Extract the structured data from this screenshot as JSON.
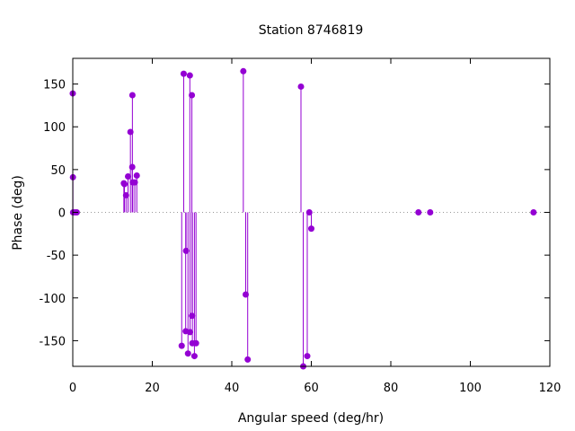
{
  "chart_data": {
    "type": "scatter",
    "style": "impulses-with-points",
    "title": "Station 8746819",
    "xlabel": "Angular speed (deg/hr)",
    "ylabel": "Phase (deg)",
    "xlim": [
      0,
      120
    ],
    "ylim": [
      -180,
      180
    ],
    "xticks": [
      "0",
      "20",
      "40",
      "60",
      "80",
      "100",
      "120"
    ],
    "yticks": [
      "-150",
      "-100",
      "-50",
      "0",
      "50",
      "100",
      "150"
    ],
    "xtick_values": [
      0,
      20,
      40,
      60,
      80,
      100,
      120
    ],
    "ytick_values": [
      -150,
      -100,
      -50,
      0,
      50,
      100,
      150
    ],
    "color": "#9400d3",
    "zero_line": true,
    "grid": false,
    "legend": "none",
    "points": [
      {
        "x": 0.0,
        "y": 139
      },
      {
        "x": 0.04,
        "y": 41
      },
      {
        "x": 0.08,
        "y": 0
      },
      {
        "x": 0.5,
        "y": 0
      },
      {
        "x": 1.0,
        "y": 0
      },
      {
        "x": 12.85,
        "y": 34
      },
      {
        "x": 13.0,
        "y": 33
      },
      {
        "x": 13.4,
        "y": 20
      },
      {
        "x": 13.9,
        "y": 42
      },
      {
        "x": 14.5,
        "y": 94
      },
      {
        "x": 14.96,
        "y": 53
      },
      {
        "x": 15.0,
        "y": 137
      },
      {
        "x": 15.1,
        "y": 35
      },
      {
        "x": 15.6,
        "y": 35
      },
      {
        "x": 16.1,
        "y": 43
      },
      {
        "x": 27.4,
        "y": -156
      },
      {
        "x": 27.9,
        "y": 162
      },
      {
        "x": 28.4,
        "y": -139
      },
      {
        "x": 28.5,
        "y": -45
      },
      {
        "x": 28.98,
        "y": -165
      },
      {
        "x": 29.45,
        "y": 160
      },
      {
        "x": 29.5,
        "y": -140
      },
      {
        "x": 29.96,
        "y": 137
      },
      {
        "x": 30.0,
        "y": -121
      },
      {
        "x": 30.08,
        "y": -153
      },
      {
        "x": 30.6,
        "y": -168
      },
      {
        "x": 31.0,
        "y": -153
      },
      {
        "x": 42.9,
        "y": 165
      },
      {
        "x": 43.5,
        "y": -96
      },
      {
        "x": 44.0,
        "y": -172
      },
      {
        "x": 57.4,
        "y": 147
      },
      {
        "x": 57.97,
        "y": -180
      },
      {
        "x": 58.98,
        "y": -168
      },
      {
        "x": 59.5,
        "y": 0
      },
      {
        "x": 60.0,
        "y": -19
      },
      {
        "x": 86.95,
        "y": 0
      },
      {
        "x": 89.9,
        "y": 0
      },
      {
        "x": 115.9,
        "y": 0
      }
    ]
  }
}
